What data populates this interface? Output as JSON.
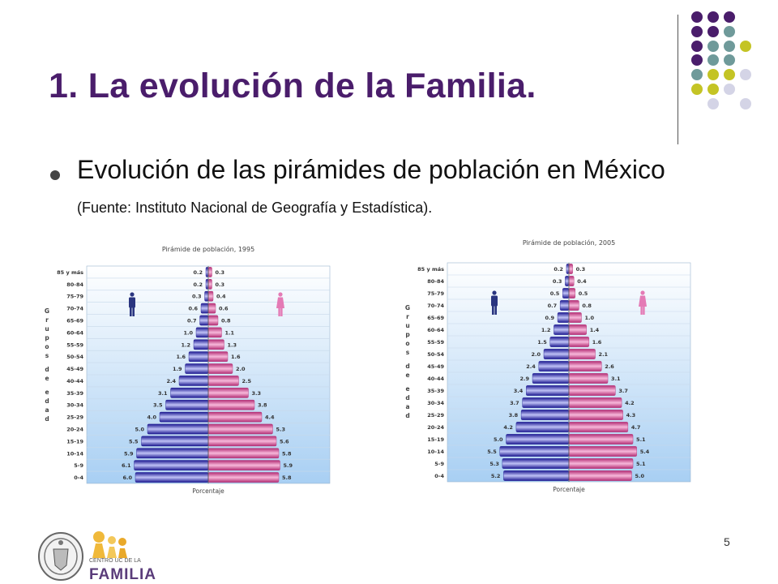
{
  "slide": {
    "title": "1. La evolución de la Familia.",
    "bullet_main": "Evolución de las pirámides de población en México",
    "bullet_source": "(Fuente: Instituto Nacional de Geografía y Estadística).",
    "slide_number": "5",
    "logo_small_text": "CENTRO UC DE LA",
    "logo_big_text": "FAMILIA",
    "colors": {
      "title": "#4a1d6b",
      "male": "#4a49c9",
      "female": "#e06aa8"
    }
  },
  "chart_data": [
    {
      "type": "bar",
      "title": "Pirámide de población, 1995",
      "xlabel": "Porcentaje",
      "ylabel": "Grupos de edad",
      "categories": [
        "85 y más",
        "80-84",
        "75-79",
        "70-74",
        "65-69",
        "60-64",
        "55-59",
        "50-54",
        "45-49",
        "40-44",
        "35-39",
        "30-34",
        "25-29",
        "20-24",
        "15-19",
        "10-14",
        "5-9",
        "0-4"
      ],
      "series": [
        {
          "values": [
            0.2,
            0.2,
            0.3,
            0.6,
            0.7,
            1.0,
            1.2,
            1.6,
            1.9,
            2.4,
            3.1,
            3.5,
            4.0,
            5.0,
            5.5,
            5.9,
            6.1,
            6.0
          ]
        },
        {
          "values": [
            0.3,
            0.3,
            0.4,
            0.6,
            0.8,
            1.1,
            1.3,
            1.6,
            2.0,
            2.5,
            3.3,
            3.8,
            4.4,
            5.3,
            5.6,
            5.8,
            5.9,
            5.8
          ]
        }
      ]
    },
    {
      "type": "bar",
      "title": "Pirámide de población, 2005",
      "xlabel": "Porcentaje",
      "ylabel": "Grupos de edad",
      "categories": [
        "85 y más",
        "80-84",
        "75-79",
        "70-74",
        "65-69",
        "60-64",
        "55-59",
        "50-54",
        "45-49",
        "40-44",
        "35-39",
        "30-34",
        "25-29",
        "20-24",
        "15-19",
        "10-14",
        "5-9",
        "0-4"
      ],
      "series": [
        {
          "values": [
            0.2,
            0.3,
            0.5,
            0.7,
            0.9,
            1.2,
            1.5,
            2.0,
            2.4,
            2.9,
            3.4,
            3.7,
            3.8,
            4.2,
            5.0,
            5.5,
            5.3,
            5.2
          ]
        },
        {
          "values": [
            0.3,
            0.4,
            0.5,
            0.8,
            1.0,
            1.4,
            1.6,
            2.1,
            2.6,
            3.1,
            3.7,
            4.2,
            4.3,
            4.7,
            5.1,
            5.4,
            5.1,
            5.0
          ]
        }
      ]
    }
  ]
}
